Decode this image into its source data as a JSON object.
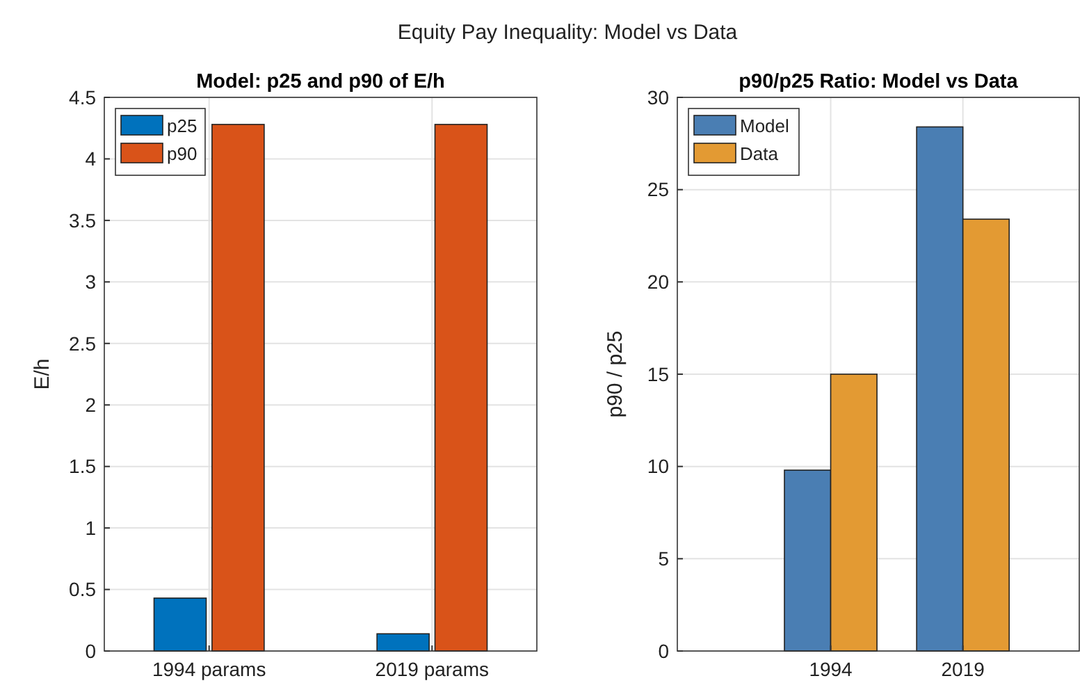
{
  "chart_data": [
    {
      "type": "bar",
      "title": "Model: p25 and p90 of E/h",
      "ylabel": "E/h",
      "annotations": [
        "Equity Pay Inequality: Model vs Data"
      ],
      "categories": [
        "1994 params",
        "2019 params"
      ],
      "series": [
        {
          "name": "p25",
          "color": "#0072bd",
          "values": [
            0.43,
            0.14
          ]
        },
        {
          "name": "p90",
          "color": "#d95319",
          "values": [
            4.28,
            4.28
          ]
        }
      ],
      "ylim": [
        0,
        4.5
      ],
      "yticks": [
        0,
        0.5,
        1,
        1.5,
        2,
        2.5,
        3,
        3.5,
        4,
        4.5
      ],
      "grid": true,
      "legend": "top left"
    },
    {
      "type": "bar",
      "title": "p90/p25 Ratio: Model vs Data",
      "ylabel": "p90 / p25",
      "x": [
        1994,
        2019
      ],
      "series": [
        {
          "name": "Model",
          "color": "#4a7eb3",
          "values": [
            9.8,
            28.4
          ]
        },
        {
          "name": "Data",
          "color": "#e39a33",
          "values": [
            15,
            23.4
          ]
        }
      ],
      "xlim": [
        1965,
        2041
      ],
      "xticks": [
        1994,
        2019
      ],
      "ylim": [
        0,
        30
      ],
      "yticks": [
        0,
        5,
        10,
        15,
        20,
        25,
        30
      ],
      "grid": true,
      "legend": "top left"
    }
  ]
}
